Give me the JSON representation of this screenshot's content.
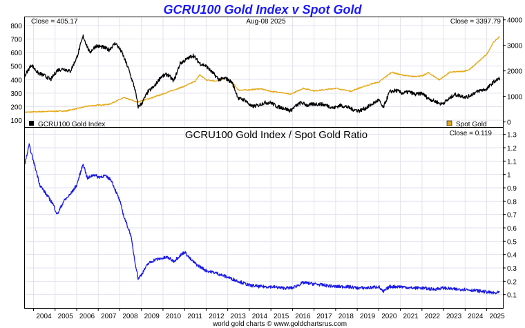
{
  "title": "GCRU100 Gold Index v Spot Gold",
  "footer": "world gold charts © www.goldchartsrus.com",
  "chart_data": [
    {
      "id": "top",
      "type": "line",
      "header_left": "Close = 405.17",
      "header_center": "Aug-08  2025",
      "header_right": "Close = 3397.79",
      "x_labels": [
        "2004",
        "2005",
        "2006",
        "2007",
        "2008",
        "2009",
        "2010",
        "2011",
        "2012",
        "2013",
        "2014",
        "2015",
        "2016",
        "2017",
        "2018",
        "2019",
        "2020",
        "2021",
        "2022",
        "2023",
        "2024",
        "2025"
      ],
      "xlim": [
        2003.6,
        2025.75
      ],
      "left_axis": {
        "ylim": [
          50,
          860
        ],
        "ticks": [
          100,
          200,
          300,
          400,
          500,
          600,
          700,
          800
        ]
      },
      "right_axis": {
        "ylim": [
          -200,
          4100
        ],
        "ticks": [
          0,
          1000,
          2000,
          3000,
          4000
        ]
      },
      "series": [
        {
          "name": "GCRU100 Gold Index",
          "legend_label": "GCRU100 Gold Index",
          "axis": "left",
          "color": "#000000",
          "x": [
            2003.6,
            2003.9,
            2004.2,
            2004.5,
            2004.8,
            2005.1,
            2005.4,
            2005.7,
            2006.0,
            2006.3,
            2006.6,
            2006.9,
            2007.2,
            2007.5,
            2007.8,
            2008.1,
            2008.4,
            2008.7,
            2008.85,
            2009.0,
            2009.3,
            2009.6,
            2009.9,
            2010.2,
            2010.5,
            2010.8,
            2011.1,
            2011.4,
            2011.7,
            2012.0,
            2012.3,
            2012.6,
            2012.9,
            2013.2,
            2013.5,
            2013.8,
            2014.1,
            2014.4,
            2014.7,
            2015.0,
            2015.3,
            2015.6,
            2015.9,
            2016.1,
            2016.4,
            2016.7,
            2017.0,
            2017.3,
            2017.6,
            2017.9,
            2018.2,
            2018.5,
            2018.8,
            2019.1,
            2019.4,
            2019.7,
            2020.0,
            2020.2,
            2020.5,
            2020.8,
            2021.1,
            2021.4,
            2021.7,
            2022.0,
            2022.3,
            2022.6,
            2022.9,
            2023.2,
            2023.5,
            2023.8,
            2024.1,
            2024.4,
            2024.7,
            2025.0,
            2025.3,
            2025.6
          ],
          "values": [
            430,
            510,
            450,
            430,
            400,
            470,
            480,
            460,
            560,
            720,
            600,
            650,
            640,
            620,
            670,
            600,
            480,
            330,
            200,
            220,
            310,
            350,
            420,
            440,
            390,
            520,
            550,
            580,
            520,
            500,
            450,
            400,
            410,
            380,
            260,
            250,
            200,
            210,
            230,
            230,
            200,
            190,
            170,
            200,
            230,
            210,
            220,
            220,
            210,
            190,
            210,
            200,
            180,
            170,
            190,
            220,
            250,
            190,
            310,
            320,
            300,
            310,
            290,
            300,
            260,
            240,
            220,
            250,
            290,
            280,
            270,
            300,
            320,
            330,
            380,
            410
          ],
          "noise": 14
        },
        {
          "name": "Spot Gold",
          "legend_label": "Spot Gold",
          "axis": "right",
          "color": "#e6a817",
          "x": [
            2003.6,
            2004.5,
            2005.5,
            2006.2,
            2006.5,
            2007.0,
            2007.5,
            2008.0,
            2008.2,
            2008.8,
            2009.5,
            2010.0,
            2010.5,
            2011.0,
            2011.5,
            2011.7,
            2012.0,
            2012.5,
            2012.9,
            2013.3,
            2013.5,
            2013.9,
            2014.5,
            2015.0,
            2015.5,
            2015.9,
            2016.5,
            2017.0,
            2017.5,
            2018.0,
            2018.7,
            2019.0,
            2019.7,
            2020.0,
            2020.6,
            2021.0,
            2021.5,
            2022.0,
            2022.3,
            2022.8,
            2023.3,
            2023.9,
            2024.2,
            2024.6,
            2025.0,
            2025.3,
            2025.6
          ],
          "values": [
            380,
            410,
            430,
            560,
            620,
            660,
            690,
            880,
            950,
            780,
            950,
            1100,
            1250,
            1400,
            1600,
            1850,
            1650,
            1600,
            1720,
            1450,
            1250,
            1250,
            1300,
            1200,
            1150,
            1080,
            1320,
            1220,
            1260,
            1320,
            1200,
            1300,
            1500,
            1560,
            1950,
            1850,
            1780,
            1800,
            1930,
            1650,
            1950,
            1980,
            2050,
            2350,
            2650,
            3100,
            3350
          ],
          "noise": 22
        }
      ]
    },
    {
      "id": "ratio",
      "type": "line",
      "title": "GCRU100 Gold Index  /  Spot Gold Ratio",
      "header_right": "Close = 0.119",
      "xlim": [
        2003.6,
        2025.75
      ],
      "ylim": [
        0.0,
        1.35
      ],
      "ticks": [
        0.1,
        0.2,
        0.3,
        0.4,
        0.5,
        0.6,
        0.7,
        0.8,
        0.9,
        1.0,
        1.1,
        1.2,
        1.3
      ],
      "series": [
        {
          "name": "Ratio",
          "color": "#1a1ae6",
          "x": [
            2003.6,
            2003.8,
            2004.0,
            2004.3,
            2004.6,
            2004.9,
            2005.1,
            2005.4,
            2005.7,
            2006.0,
            2006.3,
            2006.5,
            2006.8,
            2007.0,
            2007.3,
            2007.6,
            2007.8,
            2008.0,
            2008.2,
            2008.5,
            2008.7,
            2008.85,
            2009.0,
            2009.3,
            2009.6,
            2009.9,
            2010.2,
            2010.5,
            2010.7,
            2011.0,
            2011.3,
            2011.6,
            2011.8,
            2012.0,
            2012.5,
            2013.0,
            2013.5,
            2014.0,
            2014.5,
            2015.0,
            2015.5,
            2016.0,
            2016.5,
            2017.0,
            2017.5,
            2018.0,
            2018.5,
            2019.0,
            2019.5,
            2020.0,
            2020.2,
            2020.5,
            2021.0,
            2021.5,
            2022.0,
            2022.5,
            2023.0,
            2023.5,
            2024.0,
            2024.5,
            2025.0,
            2025.4,
            2025.6
          ],
          "values": [
            1.08,
            1.22,
            1.1,
            0.92,
            0.85,
            0.78,
            0.7,
            0.8,
            0.85,
            0.92,
            1.08,
            0.97,
            1.0,
            0.98,
            0.99,
            0.96,
            0.88,
            0.8,
            0.68,
            0.55,
            0.35,
            0.22,
            0.25,
            0.33,
            0.36,
            0.37,
            0.38,
            0.35,
            0.38,
            0.42,
            0.36,
            0.32,
            0.3,
            0.28,
            0.26,
            0.23,
            0.2,
            0.17,
            0.16,
            0.16,
            0.15,
            0.15,
            0.19,
            0.18,
            0.17,
            0.16,
            0.16,
            0.15,
            0.15,
            0.16,
            0.12,
            0.16,
            0.16,
            0.15,
            0.15,
            0.14,
            0.15,
            0.14,
            0.14,
            0.13,
            0.12,
            0.11,
            0.119
          ],
          "noise": 0.012
        }
      ]
    }
  ]
}
